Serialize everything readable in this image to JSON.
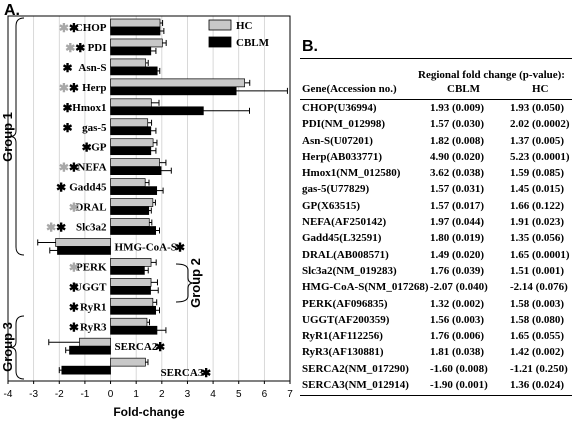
{
  "panel_a": {
    "label": "A.",
    "group_labels": [
      "Group 1",
      "Group 2",
      "Group 3"
    ]
  },
  "panel_b": {
    "label": "B.",
    "table_title": "Regional fold change (p-value):",
    "columns": [
      "Gene(Accession  no.)",
      "CBLM",
      "HC"
    ],
    "rows": [
      [
        "CHOP(U36994)",
        "1.93 (0.009)",
        "1.93 (0.050)"
      ],
      [
        "PDI(NM_012998)",
        "1.57 (0.030)",
        "2.02 (0.0002)"
      ],
      [
        "Asn-S(U07201)",
        "1.82 (0.008)",
        "1.37 (0.005)"
      ],
      [
        "Herp(AB033771)",
        "4.90 (0.020)",
        "5.23 (0.0001)"
      ],
      [
        "Hmox1(NM_012580)",
        "3.62 (0.038)",
        "1.59 (0.085)"
      ],
      [
        "gas-5(U77829)",
        "1.57 (0.031)",
        "1.45 (0.015)"
      ],
      [
        "GP(X63515)",
        "1.57 (0.017)",
        "1.66 (0.122)"
      ],
      [
        "NEFA(AF250142)",
        "1.97 (0.044)",
        "1.91 (0.023)"
      ],
      [
        "Gadd45(L32591)",
        "1.80 (0.019)",
        "1.35 (0.056)"
      ],
      [
        "DRAL(AB008571)",
        "1.49 (0.020)",
        "1.65 (0.0001)"
      ],
      [
        "Slc3a2(NM_019283)",
        "1.76 (0.039)",
        "1.51 (0.001)"
      ],
      [
        "HMG-CoA-S(NM_017268)",
        "-2.07 (0.040)",
        "-2.14 (0.076)"
      ],
      [
        "PERK(AF096835)",
        "1.32 (0.002)",
        "1.58 (0.003)"
      ],
      [
        "UGGT(AF200359)",
        "1.56 (0.003)",
        "1.58 (0.080)"
      ],
      [
        "RyR1(AF112256)",
        "1.76 (0.006)",
        "1.65 (0.055)"
      ],
      [
        "RyR3(AF130881)",
        "1.81 (0.038)",
        "1.42 (0.002)"
      ],
      [
        "SERCA2(NM_017290)",
        "-1.60 (0.008)",
        "-1.21 (0.250)"
      ],
      [
        "SERCA3(NM_012914)",
        "-1.90 (0.001)",
        "1.36 (0.024)"
      ]
    ]
  },
  "colors": {
    "hc_bar": "#c8c8c8",
    "cblm_bar": "#000000",
    "gray_star": "#a8a8a8",
    "grid": "#cfcfcf"
  },
  "chart_data": {
    "type": "bar",
    "orientation": "horizontal",
    "xlabel": "Fold-change",
    "xlim": [
      -4,
      7
    ],
    "xticks": [
      -4,
      -3,
      -2,
      -1,
      0,
      1,
      2,
      3,
      4,
      5,
      6,
      7
    ],
    "legend": "top-right",
    "categories": [
      "CHOP",
      "PDI",
      "Asn-S",
      "Herp",
      "Hmox1",
      "gas-5",
      "GP",
      "NEFA",
      "Gadd45",
      "DRAL",
      "Slc3a2",
      "HMG-CoA-S",
      "PERK",
      "UGGT",
      "RyR1",
      "RyR3",
      "SERCA2",
      "SERCA3"
    ],
    "series": [
      {
        "name": "HC",
        "values": [
          1.93,
          2.02,
          1.37,
          5.23,
          1.59,
          1.45,
          1.66,
          1.91,
          1.35,
          1.65,
          1.51,
          -2.14,
          1.58,
          1.58,
          1.65,
          1.42,
          -1.21,
          1.36
        ],
        "errors": [
          0.1,
          0.15,
          0.1,
          0.2,
          0.3,
          0.15,
          0.15,
          0.25,
          0.15,
          0.1,
          0.1,
          0.7,
          0.2,
          0.25,
          0.15,
          0.1,
          1.2,
          0.1
        ]
      },
      {
        "name": "CBLM",
        "values": [
          1.93,
          1.57,
          1.82,
          4.9,
          3.62,
          1.57,
          1.57,
          1.97,
          1.8,
          1.49,
          1.76,
          -2.07,
          1.32,
          1.56,
          1.76,
          1.81,
          -1.6,
          -1.9
        ],
        "errors": [
          0.15,
          0.2,
          0.1,
          2.0,
          1.8,
          0.2,
          0.2,
          0.4,
          0.25,
          0.1,
          0.15,
          0.3,
          0.15,
          0.3,
          0.15,
          0.35,
          0.15,
          0.1
        ]
      }
    ],
    "markers": {
      "cblm_star": [
        true,
        true,
        true,
        true,
        true,
        true,
        true,
        true,
        true,
        false,
        true,
        true,
        false,
        true,
        true,
        true,
        true,
        true
      ],
      "hc_star": [
        true,
        true,
        false,
        true,
        false,
        false,
        false,
        true,
        false,
        true,
        true,
        false,
        true,
        false,
        false,
        false,
        false,
        false
      ],
      "star_char": "✱"
    }
  }
}
